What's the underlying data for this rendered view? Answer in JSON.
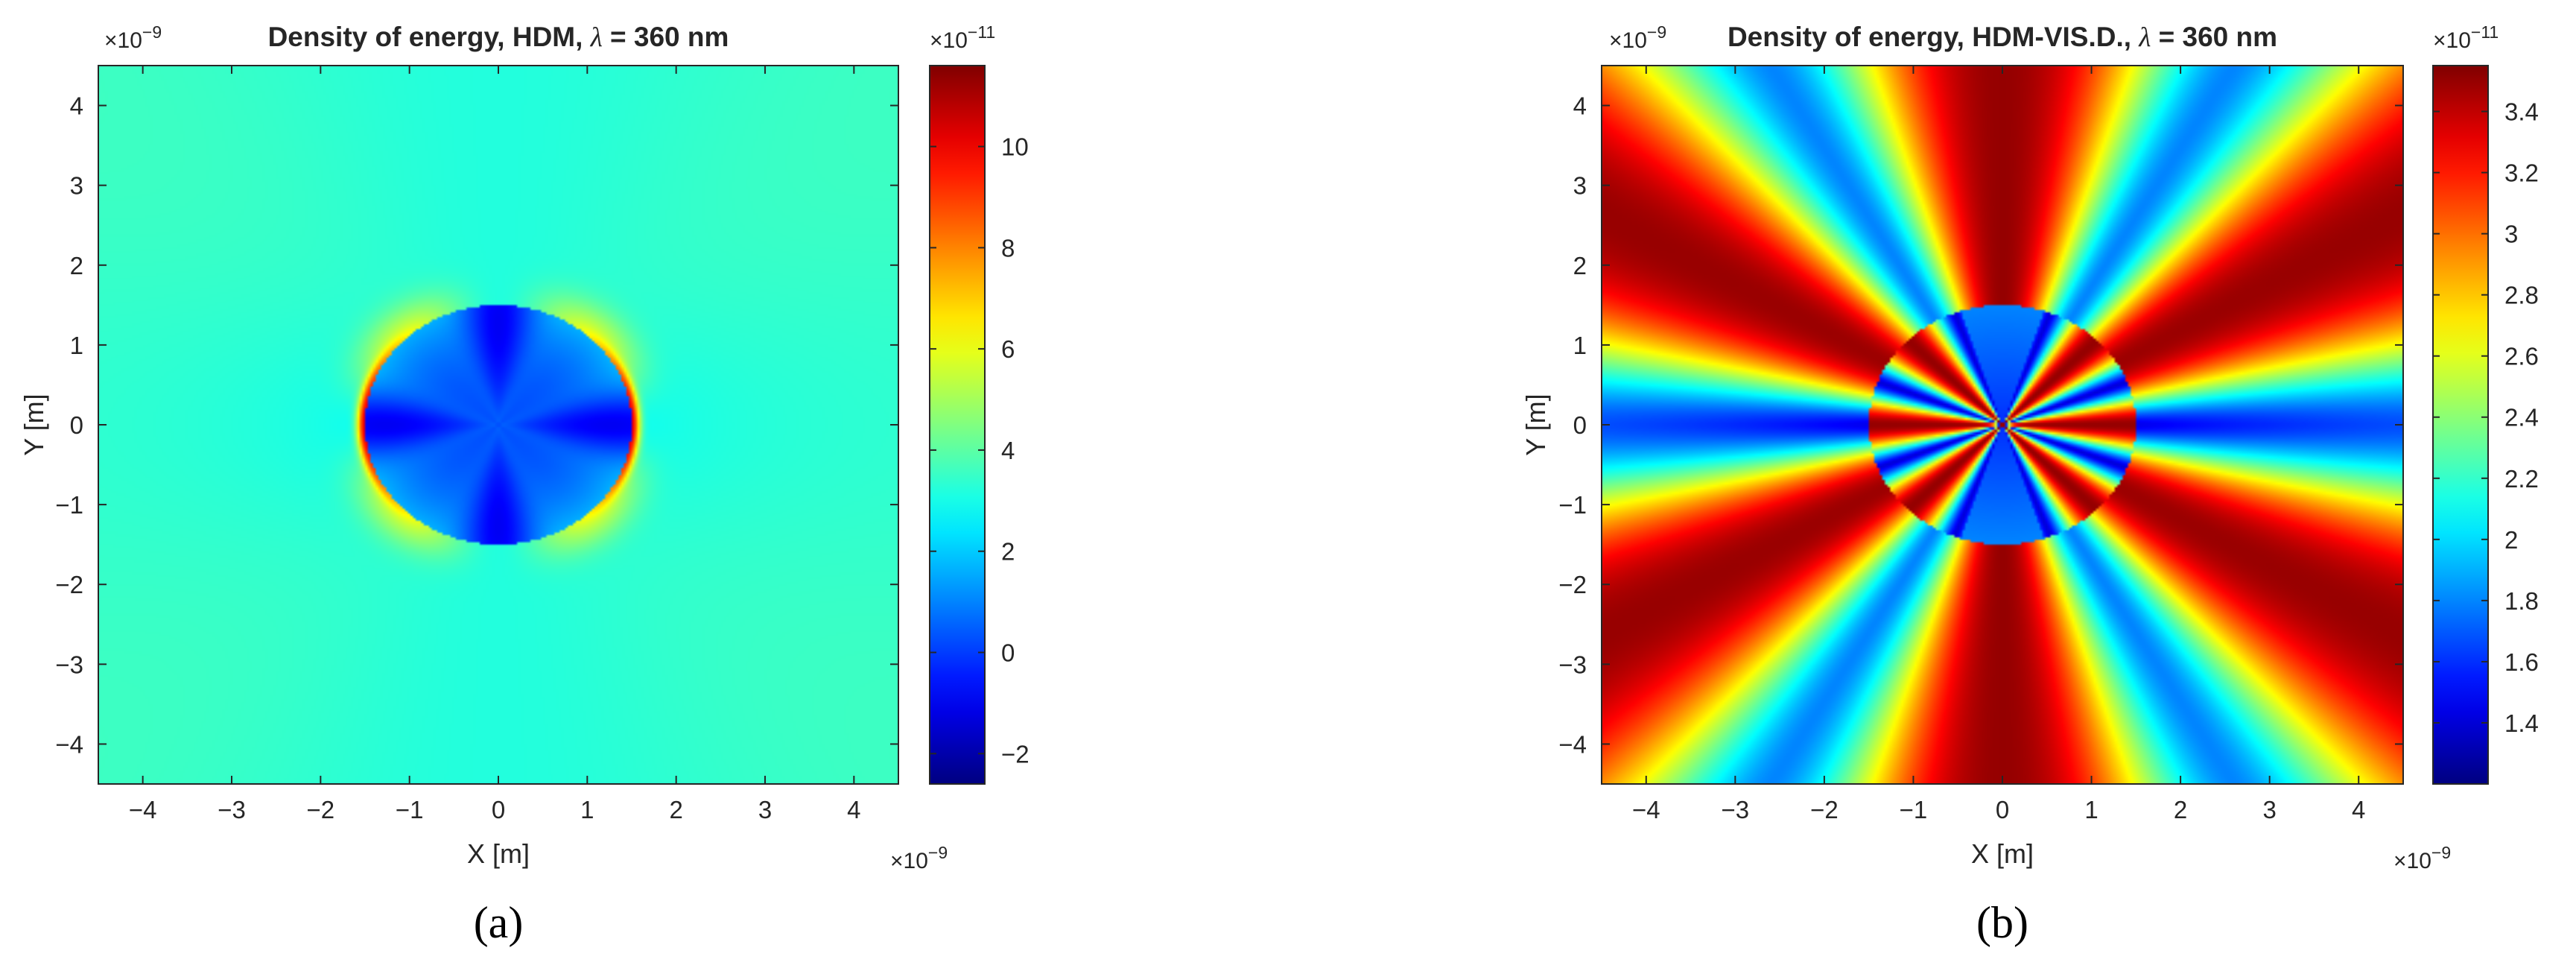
{
  "chart_data": [
    {
      "type": "heatmap",
      "panel_caption": "(a)",
      "title_prefix": "Density of energy, HDM, ",
      "title_symbol": "λ",
      "title_suffix": " = 360 nm",
      "xlabel": "X [m]",
      "ylabel": "Y [m]",
      "x_exponent": "×10",
      "x_exponent_power": "-9",
      "y_exponent": "×10",
      "y_exponent_power": "-9",
      "xlim": [
        -4.5,
        4.5
      ],
      "ylim": [
        -4.5,
        4.5
      ],
      "xticks": [
        -4,
        -3,
        -2,
        -1,
        0,
        1,
        2,
        3,
        4
      ],
      "yticks": [
        4,
        3,
        2,
        1,
        0,
        -1,
        -2,
        -3,
        -4
      ],
      "colorbar": {
        "min": -2.6,
        "max": 11.6,
        "ticks": [
          10,
          8,
          6,
          4,
          2,
          0,
          -2
        ],
        "exponent": "×10",
        "exponent_power": "-11",
        "colormap": "jet"
      },
      "field": {
        "background_value": 3.2,
        "sphere_radius": 1.5,
        "sphere_center": [
          0,
          0
        ],
        "sphere_interior_value": 0.3,
        "sphere_interior_min": -2.5,
        "rim_peak_value": 10.5,
        "grid": "off"
      }
    },
    {
      "type": "heatmap",
      "panel_caption": "(b)",
      "title_prefix": "Density of energy, HDM-VIS.D., ",
      "title_symbol": "λ",
      "title_suffix": " = 360 nm",
      "xlabel": "X [m]",
      "ylabel": "Y [m]",
      "x_exponent": "×10",
      "x_exponent_power": "-9",
      "y_exponent": "×10",
      "y_exponent_power": "-9",
      "xlim": [
        -4.5,
        4.5
      ],
      "ylim": [
        -4.5,
        4.5
      ],
      "xticks": [
        -4,
        -3,
        -2,
        -1,
        0,
        1,
        2,
        3,
        4
      ],
      "yticks": [
        4,
        3,
        2,
        1,
        0,
        -1,
        -2,
        -3,
        -4
      ],
      "colorbar": {
        "min": 1.2,
        "max": 3.55,
        "ticks": [
          3.4,
          3.2,
          3,
          2.8,
          2.6,
          2.4,
          2.2,
          2,
          1.8,
          1.6,
          1.4
        ],
        "exponent": "×10",
        "exponent_power": "-11",
        "colormap": "jet"
      },
      "field": {
        "pattern": "radial petals",
        "sphere_radius": 1.5,
        "sphere_center": [
          0,
          0
        ],
        "high_value": 3.5,
        "low_value": 1.8,
        "grid": "off"
      }
    }
  ]
}
